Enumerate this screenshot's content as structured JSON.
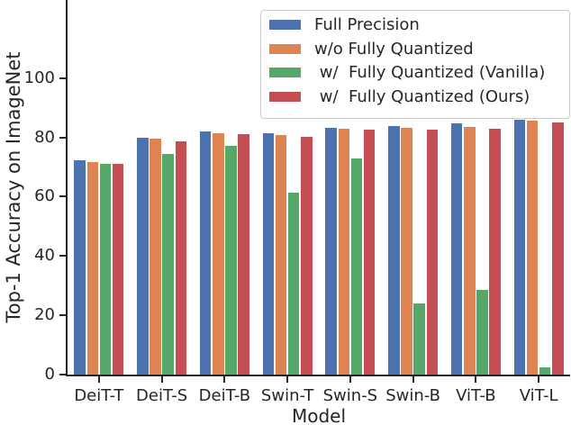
{
  "chart_data": {
    "type": "bar",
    "title": "",
    "xlabel": "Model",
    "ylabel": "Top-1 Accuracy on ImageNet",
    "categories": [
      "DeiT-T",
      "DeiT-S",
      "DeiT-B",
      "Swin-T",
      "Swin-S",
      "Swin-B",
      "ViT-B",
      "ViT-L"
    ],
    "series": [
      {
        "name": "Full Precision",
        "color": "#4C72B0",
        "values": [
          72.2,
          79.9,
          82.0,
          81.3,
          83.2,
          83.7,
          84.8,
          86.0
        ]
      },
      {
        "name": "w/o Fully Quantized",
        "color": "#DD8452",
        "values": [
          71.6,
          79.6,
          81.3,
          80.9,
          82.9,
          83.2,
          83.5,
          85.6
        ]
      },
      {
        "name": " w/  Fully Quantized (Vanilla)",
        "color": "#55A868",
        "values": [
          70.9,
          74.4,
          77.0,
          61.2,
          73.0,
          24.0,
          28.6,
          2.3
        ]
      },
      {
        "name": " w/  Fully Quantized (Ours)",
        "color": "#C44E52",
        "values": [
          71.1,
          78.7,
          81.0,
          80.3,
          82.5,
          82.6,
          82.9,
          85.0
        ]
      }
    ],
    "yticks": [
      0,
      20,
      40,
      60,
      80,
      100
    ],
    "ylim": [
      0,
      126.3
    ],
    "grid": false,
    "legend_position": "upper right",
    "axis_color": "#262626"
  }
}
